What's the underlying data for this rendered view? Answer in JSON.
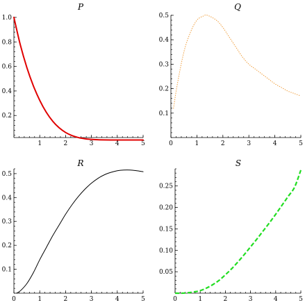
{
  "chart_data": [
    {
      "type": "line",
      "title": "P",
      "xlim": [
        0,
        5
      ],
      "ylim": [
        0.02,
        1.0
      ],
      "xticks": [
        1,
        2,
        3,
        4,
        5
      ],
      "yticks": [
        0.2,
        0.4,
        0.6,
        0.8,
        1.0
      ],
      "ytick_labels": [
        "0.2",
        "0.4",
        "0.6",
        "0.8",
        "1.0"
      ],
      "series": [
        {
          "color": "#e00000",
          "style": "solid",
          "x": [
            0,
            0.25,
            0.5,
            0.75,
            1,
            1.25,
            1.5,
            1.75,
            2,
            2.25,
            2.5,
            2.75,
            3,
            3.25,
            3.5,
            3.75,
            4,
            4.25,
            4.5,
            4.75,
            5
          ],
          "y": [
            1.0,
            0.7746,
            0.5921,
            0.4437,
            0.3235,
            0.2275,
            0.1539,
            0.0997,
            0.0614,
            0.0359,
            0.0198,
            0.0102,
            0.0048,
            0.0021,
            0.0008,
            0.0003,
            0.0001,
            0.0,
            0.0,
            0.0,
            0.0
          ]
        }
      ]
    },
    {
      "type": "line",
      "title": "Q",
      "xlim": [
        0,
        5
      ],
      "ylim": [
        0.0,
        0.5
      ],
      "xticks": [
        0,
        1,
        2,
        3,
        4,
        5
      ],
      "yticks": [
        0.1,
        0.2,
        0.3,
        0.4,
        0.5
      ],
      "ytick_labels": [
        "0.1",
        "0.2",
        "0.3",
        "0.4",
        "0.5"
      ],
      "series": [
        {
          "color": "#f0a040",
          "style": "dotted",
          "x": [
            0.1,
            0.25,
            0.5,
            0.75,
            1,
            1.25,
            1.4,
            1.75,
            2,
            2.25,
            2.5,
            2.75,
            3,
            3.25,
            3.5,
            3.75,
            4,
            4.25,
            4.5,
            4.75,
            5
          ],
          "y": [
            0.12,
            0.22,
            0.35,
            0.43,
            0.48,
            0.497,
            0.5,
            0.48,
            0.45,
            0.41,
            0.37,
            0.33,
            0.3,
            0.28,
            0.26,
            0.24,
            0.22,
            0.205,
            0.19,
            0.18,
            0.17
          ]
        }
      ]
    },
    {
      "type": "line",
      "title": "R",
      "xlim": [
        0,
        5
      ],
      "ylim": [
        0.0,
        0.52
      ],
      "xticks": [
        0,
        1,
        2,
        3,
        4,
        5
      ],
      "yticks": [
        0.1,
        0.2,
        0.3,
        0.4,
        0.5
      ],
      "ytick_labels": [
        "0.1",
        "0.2",
        "0.3",
        "0.4",
        "0.5"
      ],
      "series": [
        {
          "color": "#000000",
          "style": "solid",
          "x": [
            0.1,
            0.25,
            0.5,
            0.75,
            1,
            1.25,
            1.5,
            1.75,
            2,
            2.25,
            2.5,
            2.75,
            3,
            3.25,
            3.5,
            3.75,
            4,
            4.25,
            4.5,
            4.75,
            5
          ],
          "y": [
            0.0,
            0.01,
            0.04,
            0.085,
            0.14,
            0.19,
            0.24,
            0.285,
            0.33,
            0.37,
            0.405,
            0.435,
            0.46,
            0.48,
            0.495,
            0.505,
            0.512,
            0.515,
            0.515,
            0.512,
            0.508
          ]
        }
      ]
    },
    {
      "type": "line",
      "title": "S",
      "xlim": [
        0,
        5
      ],
      "ylim": [
        0.0,
        0.29
      ],
      "xticks": [
        0,
        1,
        2,
        3,
        4,
        5
      ],
      "yticks": [
        0.05,
        0.1,
        0.15,
        0.2,
        0.25
      ],
      "ytick_labels": [
        "0.05",
        "0.10",
        "0.15",
        "0.20",
        "0.25"
      ],
      "series": [
        {
          "color": "#22dd22",
          "style": "dashed",
          "x": [
            0,
            0.25,
            0.5,
            0.75,
            1,
            1.25,
            1.5,
            1.75,
            2,
            2.25,
            2.5,
            2.75,
            3,
            3.25,
            3.5,
            3.75,
            4,
            4.25,
            4.5,
            4.75,
            5
          ],
          "y": [
            0.0,
            0.0,
            0.001,
            0.003,
            0.006,
            0.012,
            0.02,
            0.03,
            0.043,
            0.057,
            0.073,
            0.09,
            0.108,
            0.126,
            0.145,
            0.164,
            0.184,
            0.205,
            0.226,
            0.247,
            0.287
          ]
        }
      ]
    }
  ]
}
